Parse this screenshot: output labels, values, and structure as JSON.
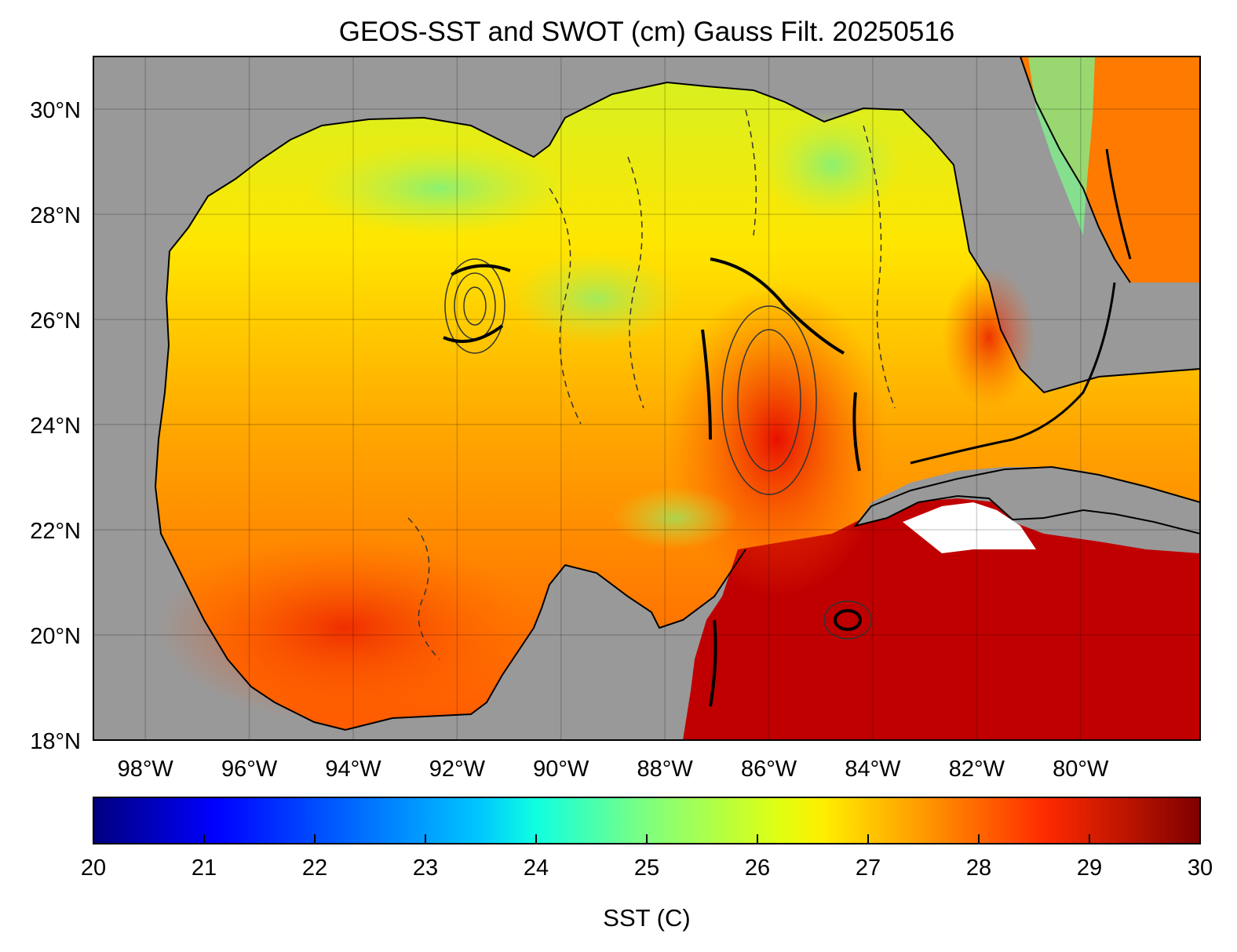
{
  "map": {
    "title": "GEOS-SST  and SWOT (cm) Gauss Filt. 20250516",
    "lon_range": [
      -99,
      -77.7
    ],
    "lat_range": [
      18,
      31
    ],
    "lon_ticks": [
      {
        "value": -98,
        "label": "98°W"
      },
      {
        "value": -96,
        "label": "96°W"
      },
      {
        "value": -94,
        "label": "94°W"
      },
      {
        "value": -92,
        "label": "92°W"
      },
      {
        "value": -90,
        "label": "90°W"
      },
      {
        "value": -88,
        "label": "88°W"
      },
      {
        "value": -86,
        "label": "86°W"
      },
      {
        "value": -84,
        "label": "84°W"
      },
      {
        "value": -82,
        "label": "82°W"
      },
      {
        "value": -80,
        "label": "80°W"
      }
    ],
    "lat_ticks": [
      {
        "value": 30,
        "label": "30°N"
      },
      {
        "value": 28,
        "label": "28°N"
      },
      {
        "value": 26,
        "label": "26°N"
      },
      {
        "value": 24,
        "label": "24°N"
      },
      {
        "value": 22,
        "label": "22°N"
      },
      {
        "value": 20,
        "label": "20°N"
      },
      {
        "value": 18,
        "label": "18°N"
      }
    ],
    "land_color": "#999999",
    "grid": true
  },
  "colorbar": {
    "label": "SST (C)",
    "min": 20,
    "max": 30,
    "ticks": [
      "20",
      "21",
      "22",
      "23",
      "24",
      "25",
      "26",
      "27",
      "28",
      "29",
      "30"
    ],
    "colormap": [
      "#00007f",
      "#0000ff",
      "#007fff",
      "#00ffff",
      "#7fff7f",
      "#ffff00",
      "#ff7f00",
      "#ff0000",
      "#7f0000"
    ]
  }
}
